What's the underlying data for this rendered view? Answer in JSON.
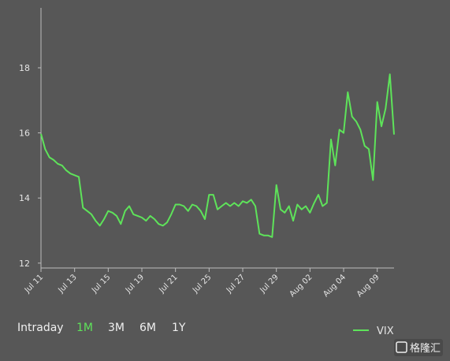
{
  "chart_data": {
    "type": "line",
    "categories": [
      "Jul 11",
      null,
      null,
      null,
      null,
      null,
      null,
      null,
      "Jul 13",
      null,
      null,
      null,
      null,
      null,
      null,
      null,
      "Jul 15",
      null,
      null,
      null,
      null,
      null,
      null,
      null,
      "Jul 19",
      null,
      null,
      null,
      null,
      null,
      null,
      null,
      "Jul 21",
      null,
      null,
      null,
      null,
      null,
      null,
      null,
      "Jul 25",
      null,
      null,
      null,
      null,
      null,
      null,
      null,
      "Jul 27",
      null,
      null,
      null,
      null,
      null,
      null,
      null,
      "Jul 29",
      null,
      null,
      null,
      null,
      null,
      null,
      null,
      "Aug 02",
      null,
      null,
      null,
      null,
      null,
      null,
      null,
      "Aug 04",
      null,
      null,
      null,
      null,
      null,
      null,
      null,
      "Aug 09",
      null,
      null,
      null,
      null
    ],
    "series": [
      {
        "name": "VIX",
        "color": "#5ee35a",
        "values": [
          15.97,
          15.5,
          15.25,
          15.17,
          15.05,
          15.0,
          14.85,
          14.75,
          14.7,
          14.65,
          13.7,
          13.6,
          13.5,
          13.3,
          13.15,
          13.35,
          13.6,
          13.55,
          13.45,
          13.2,
          13.6,
          13.75,
          13.5,
          13.45,
          13.4,
          13.3,
          13.45,
          13.35,
          13.2,
          13.15,
          13.25,
          13.5,
          13.8,
          13.8,
          13.75,
          13.6,
          13.8,
          13.75,
          13.6,
          13.35,
          14.1,
          14.1,
          13.65,
          13.75,
          13.85,
          13.75,
          13.85,
          13.75,
          13.9,
          13.85,
          13.95,
          13.75,
          12.9,
          12.85,
          12.85,
          12.8,
          14.4,
          13.65,
          13.55,
          13.75,
          13.3,
          13.8,
          13.65,
          13.75,
          13.55,
          13.85,
          14.1,
          13.75,
          13.85,
          15.8,
          15.0,
          16.1,
          16.0,
          17.25,
          16.5,
          16.35,
          16.1,
          15.6,
          15.5,
          14.55,
          16.95,
          16.2,
          16.75,
          17.8,
          15.95
        ]
      }
    ],
    "ylim": [
      11.85,
      19.84
    ],
    "yticks": [
      12,
      14,
      16,
      18
    ],
    "legend": "bottom-right"
  },
  "range_buttons": {
    "items": [
      "Intraday",
      "1M",
      "3M",
      "6M",
      "1Y"
    ],
    "active": 1
  },
  "watermark": "格隆汇"
}
